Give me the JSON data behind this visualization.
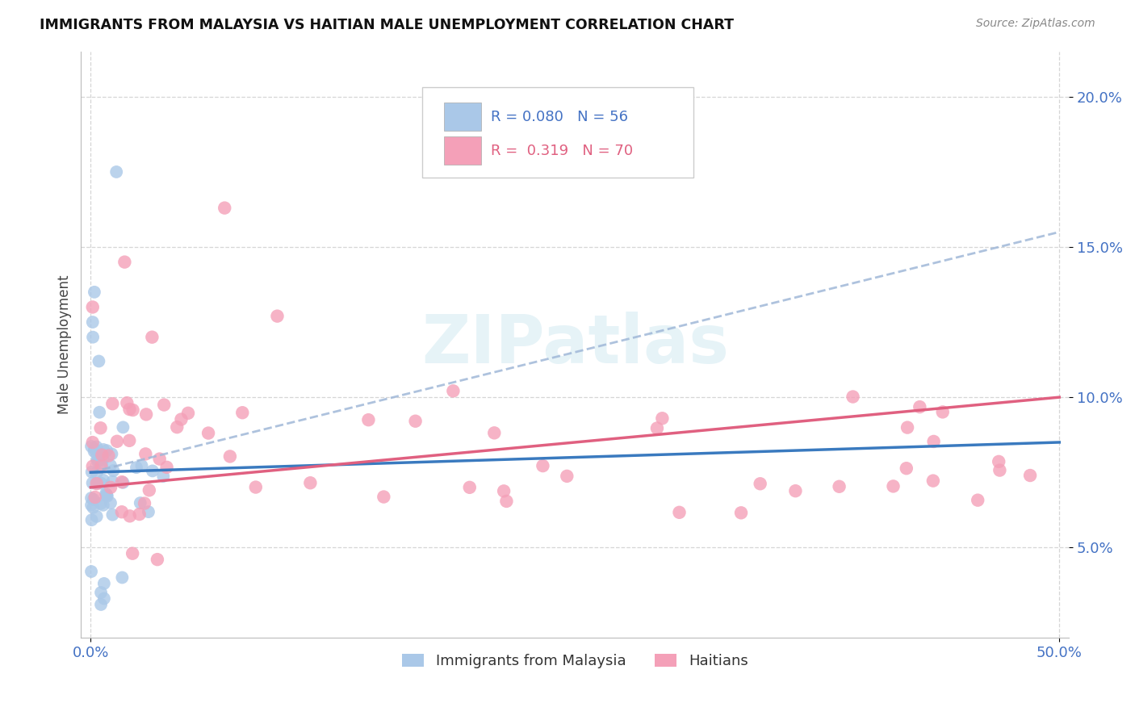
{
  "title": "IMMIGRANTS FROM MALAYSIA VS HAITIAN MALE UNEMPLOYMENT CORRELATION CHART",
  "source": "Source: ZipAtlas.com",
  "ylabel": "Male Unemployment",
  "xlim": [
    -0.005,
    0.505
  ],
  "ylim": [
    0.02,
    0.215
  ],
  "xtick_positions": [
    0.0,
    0.5
  ],
  "xtick_labels": [
    "0.0%",
    "50.0%"
  ],
  "ytick_positions": [
    0.05,
    0.1,
    0.15,
    0.2
  ],
  "ytick_labels": [
    "5.0%",
    "10.0%",
    "15.0%",
    "20.0%"
  ],
  "color_malaysia": "#aac8e8",
  "color_haitians": "#f4a0b8",
  "trendline_malaysia_color": "#3a7abf",
  "trendline_haitians_color": "#e06080",
  "trendline_dashed_color": "#a0b8d8",
  "watermark": "ZIPatlas",
  "legend_text_color_blue": "#4472c4",
  "legend_text_color_pink": "#e06080"
}
